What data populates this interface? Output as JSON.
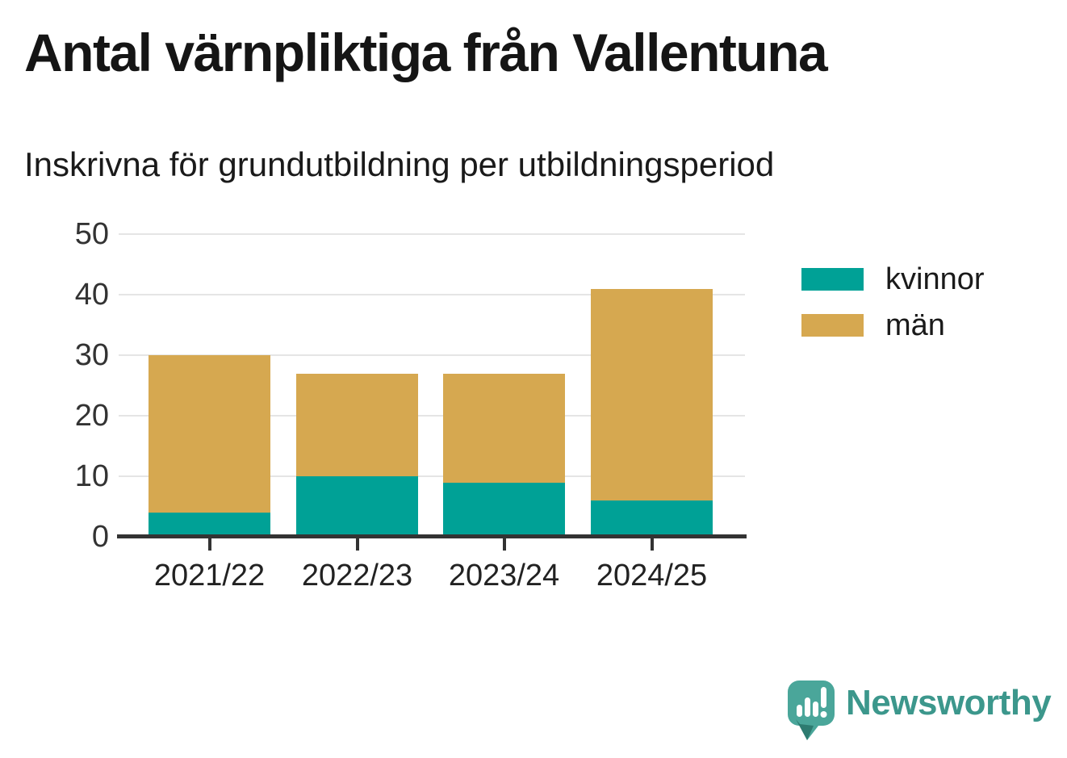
{
  "title": "Antal värnpliktiga från Vallentuna",
  "subtitle": "Inskrivna för grundutbildning per utbildningsperiod",
  "branding": {
    "name": "Newsworthy",
    "icon": "newsworthy-bubble-chart-icon",
    "color": "#3c978c"
  },
  "colors": {
    "kvinnor": "#00a196",
    "man": "#d6a850",
    "axis": "#333333",
    "grid": "#e5e5e5",
    "tick_text": "#333333",
    "title_text": "#151515"
  },
  "legend": {
    "items": [
      {
        "label": "kvinnor",
        "color": "#00a196"
      },
      {
        "label": "män",
        "color": "#d6a850"
      }
    ]
  },
  "chart_data": {
    "type": "bar",
    "stacked": true,
    "title": "Antal värnpliktiga från Vallentuna",
    "subtitle": "Inskrivna för grundutbildning per utbildningsperiod",
    "categories": [
      "2021/22",
      "2022/23",
      "2023/24",
      "2024/25"
    ],
    "series": [
      {
        "name": "kvinnor",
        "color": "#00a196",
        "values": [
          4,
          10,
          9,
          6
        ]
      },
      {
        "name": "män",
        "color": "#d6a850",
        "values": [
          26,
          17,
          18,
          35
        ]
      }
    ],
    "stack_totals": [
      30,
      27,
      27,
      41
    ],
    "xlabel": "",
    "ylabel": "",
    "ylim": [
      0,
      50
    ],
    "yticks": [
      0,
      10,
      20,
      30,
      40,
      50
    ],
    "grid": "horizontal",
    "legend_position": "right"
  }
}
